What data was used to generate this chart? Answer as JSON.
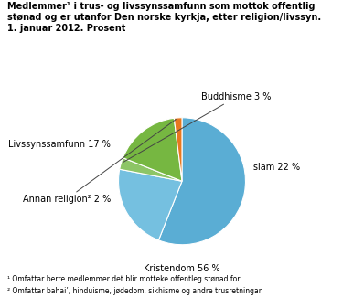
{
  "title": "Medlemmer¹ i trus- og livssynssamfunn som mottok offentlig\nstønad og er utanfor Den norske kyrkja, etter religion/livssyn.\n1. januar 2012. Prosent",
  "slices": [
    {
      "label": "Kristendom 56 %",
      "value": 56,
      "color": "#5aadd4"
    },
    {
      "label": "Islam 22 %",
      "value": 22,
      "color": "#75c0e0"
    },
    {
      "label": "Buddhisme 3 %",
      "value": 3,
      "color": "#8dc566"
    },
    {
      "label": "Livssynssamfunn 17 %",
      "value": 17,
      "color": "#76b741"
    },
    {
      "label": "Annan religion² 2 %",
      "value": 2,
      "color": "#e87820"
    }
  ],
  "footnote1": "¹ Omfattar berre medlemmer det blir motteke offentleg stønad for.",
  "footnote2": "² Omfattar bahai’, hinduisme, jødedom, sikhisme og andre trusretningar.",
  "background_color": "#ffffff"
}
